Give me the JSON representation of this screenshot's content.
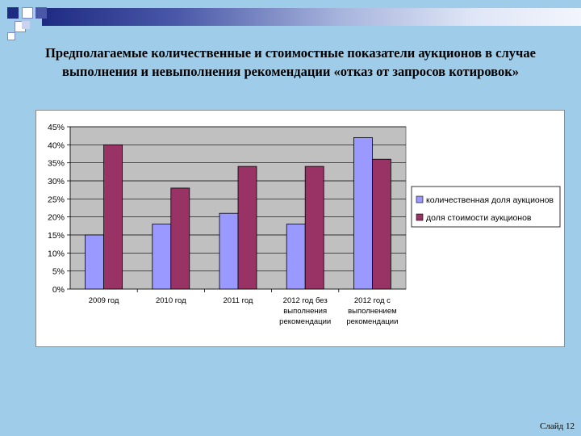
{
  "slide": {
    "title_line1": "Предполагаемые количественные и стоимостные показатели аукционов в случае",
    "title_line2": "выполнения и невыполнения рекомендации «отказ от запросов котировок»",
    "slide_number": "Слайд 12"
  },
  "chart_data": {
    "type": "bar",
    "categories": [
      [
        "2009 год"
      ],
      [
        "2010 год"
      ],
      [
        "2011 год"
      ],
      [
        "2012 год без",
        "выполнения",
        "рекомендации"
      ],
      [
        "2012 год с",
        "выполнением",
        "рекомендации"
      ]
    ],
    "series": [
      {
        "name": "количественная доля аукционов",
        "color": "#9999ff",
        "values": [
          15,
          18,
          21,
          18,
          42
        ]
      },
      {
        "name": "доля стоимости аукционов",
        "color": "#993366",
        "values": [
          40,
          28,
          34,
          34,
          36
        ]
      }
    ],
    "yticks": [
      "0%",
      "5%",
      "10%",
      "15%",
      "20%",
      "25%",
      "30%",
      "35%",
      "40%",
      "45%"
    ],
    "ylim": [
      0,
      45
    ],
    "ytick_step": 5,
    "legend_position": "right",
    "plot_background": "#c0c0c0",
    "grid": true
  }
}
